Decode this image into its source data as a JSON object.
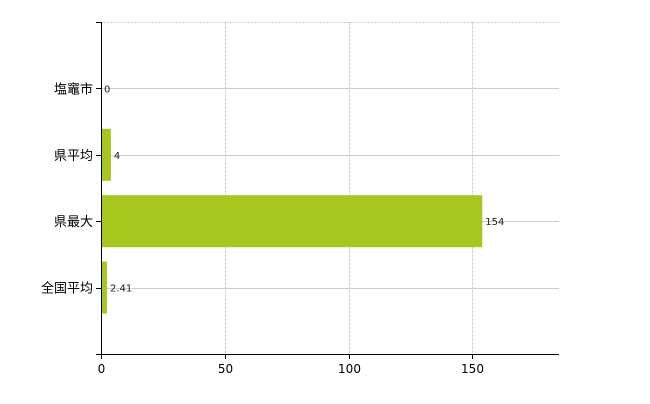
{
  "chart_data": {
    "type": "bar",
    "orientation": "horizontal",
    "categories": [
      "塩竈市",
      "県平均",
      "県最大",
      "全国平均"
    ],
    "values": [
      0,
      4,
      154,
      2.41
    ],
    "value_labels": [
      "0",
      "4",
      "154",
      "2.41"
    ],
    "title": "",
    "xlabel": "",
    "ylabel": "",
    "xlim": [
      0,
      185
    ],
    "xticks": [
      0,
      50,
      100,
      150
    ],
    "xtick_labels": [
      "0",
      "50",
      "100",
      "150"
    ],
    "grid": true,
    "bar_color": "#a6c81e",
    "label_color": "#222222"
  }
}
